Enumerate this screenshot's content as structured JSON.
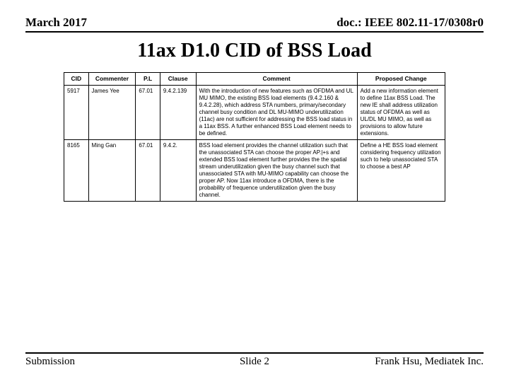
{
  "header": {
    "date": "March 2017",
    "docnum": "doc.: IEEE 802.11-17/0308r0"
  },
  "title": "11ax D1.0 CID of BSS Load",
  "table": {
    "columns": [
      "CID",
      "Commenter",
      "P.L",
      "Clause",
      "Comment",
      "Proposed Change"
    ],
    "rows": [
      {
        "cid": "5917",
        "commenter": "James Yee",
        "pl": "67.01",
        "clause": "9.4.2.139",
        "comment": "With the introduction of new features such as OFDMA and UL MU MIMO, the existing BSS load elements (9.4.2.160 & 9.4.2.28), which address STA numbers, primary/secondary channel busy condition and DL MU-MIMO underutilization (11ac) are not sufficient for addressing the BSS load status in a 11ax BSS. A further enhanced BSS Load element needs to be defined.",
        "proposed": "Add a new information element to define 11ax BSS Load. The new IE shall address utilization status of OFDMA as well as UL/DL MU MIMO, as well as provisions to allow future extensions."
      },
      {
        "cid": "8165",
        "commenter": "Ming Gan",
        "pl": "67.01",
        "clause": "9.4.2.",
        "comment": "BSS load element provides the channel utilization such that the unassociated STA can choose the proper AP.|+s and extended BSS load element further provides the the spatial stream underutilization given the busy channel such that unassociated STA with MU-MIMO capability can choose the proper AP. Now 11ax introduce a OFDMA, there is the probability of frequence underutilization given the busy channel.",
        "proposed": "Define a HE BSS load element considering frequency utilization such to help unassociated STA to choose a best AP"
      }
    ]
  },
  "footer": {
    "left": "Submission",
    "center": "Slide 2",
    "right": "Frank Hsu, Mediatek Inc."
  }
}
